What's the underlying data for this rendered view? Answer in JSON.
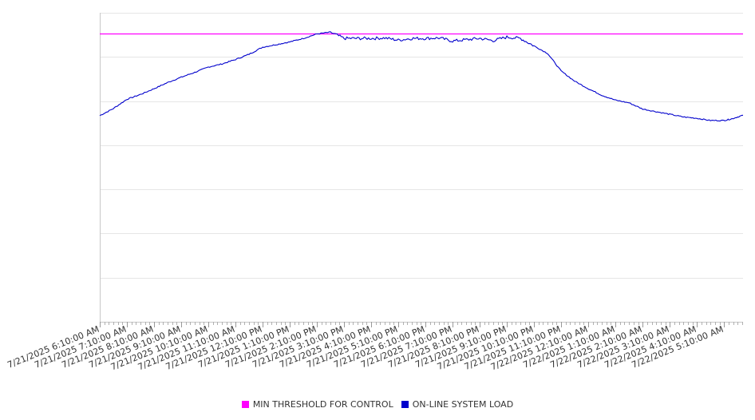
{
  "chart_data": {
    "type": "line",
    "x_labels": [
      "7/21/2025 6:10:00 AM",
      "7/21/2025 7:10:00 AM",
      "7/21/2025 8:10:00 AM",
      "7/21/2025 9:10:00 AM",
      "7/21/2025 10:10:00 AM",
      "7/21/2025 11:10:00 AM",
      "7/21/2025 12:10:00 PM",
      "7/21/2025 1:10:00 PM",
      "7/21/2025 2:10:00 PM",
      "7/21/2025 3:10:00 PM",
      "7/21/2025 4:10:00 PM",
      "7/21/2025 5:10:00 PM",
      "7/21/2025 6:10:00 PM",
      "7/21/2025 7:10:00 PM",
      "7/21/2025 8:10:00 PM",
      "7/21/2025 9:10:00 PM",
      "7/21/2025 10:10:00 PM",
      "7/21/2025 11:10:00 PM",
      "7/22/2025 12:10:00 AM",
      "7/22/2025 1:10:00 AM",
      "7/22/2025 2:10:00 AM",
      "7/22/2025 3:10:00 AM",
      "7/22/2025 4:10:00 AM",
      "7/22/2025 5:10:00 AM"
    ],
    "x_range_hours": [
      0,
      23.7
    ],
    "y_range": [
      0,
      7
    ],
    "y_gridlines": [
      0,
      1,
      2,
      3,
      4,
      5,
      6,
      7
    ],
    "y_tick_labels_visible": false,
    "grid": true,
    "legend_position": "bottom",
    "series": [
      {
        "name": "MIN THRESHOLD FOR CONTROL",
        "color": "#ff00ff",
        "style": "constant",
        "value": 6.52
      },
      {
        "name": "ON-LINE SYSTEM LOAD",
        "color": "#0000cc",
        "style": "line",
        "points": [
          [
            0,
            4.67
          ],
          [
            0.5,
            4.83
          ],
          [
            1,
            5.04
          ],
          [
            1.5,
            5.15
          ],
          [
            2,
            5.28
          ],
          [
            2.5,
            5.42
          ],
          [
            3,
            5.54
          ],
          [
            3.5,
            5.65
          ],
          [
            4,
            5.77
          ],
          [
            4.5,
            5.84
          ],
          [
            5,
            5.94
          ],
          [
            5.5,
            6.06
          ],
          [
            6,
            6.22
          ],
          [
            6.5,
            6.28
          ],
          [
            7,
            6.34
          ],
          [
            7.5,
            6.42
          ],
          [
            8,
            6.52
          ],
          [
            8.5,
            6.56
          ],
          [
            9,
            6.42
          ],
          [
            9.5,
            6.42
          ],
          [
            10,
            6.42
          ],
          [
            10.5,
            6.43
          ],
          [
            11,
            6.38
          ],
          [
            11.5,
            6.42
          ],
          [
            12,
            6.42
          ],
          [
            12.5,
            6.43
          ],
          [
            13,
            6.36
          ],
          [
            13.5,
            6.39
          ],
          [
            14,
            6.42
          ],
          [
            14.5,
            6.37
          ],
          [
            15,
            6.45
          ],
          [
            15.5,
            6.42
          ],
          [
            16,
            6.25
          ],
          [
            16.5,
            6.08
          ],
          [
            17,
            5.68
          ],
          [
            17.5,
            5.45
          ],
          [
            18,
            5.28
          ],
          [
            18.5,
            5.13
          ],
          [
            19,
            5.02
          ],
          [
            19.5,
            4.96
          ],
          [
            20,
            4.82
          ],
          [
            20.5,
            4.76
          ],
          [
            21,
            4.7
          ],
          [
            21.5,
            4.64
          ],
          [
            22,
            4.61
          ],
          [
            22.5,
            4.56
          ],
          [
            23,
            4.56
          ],
          [
            23.3,
            4.6
          ],
          [
            23.7,
            4.68
          ]
        ]
      }
    ]
  }
}
